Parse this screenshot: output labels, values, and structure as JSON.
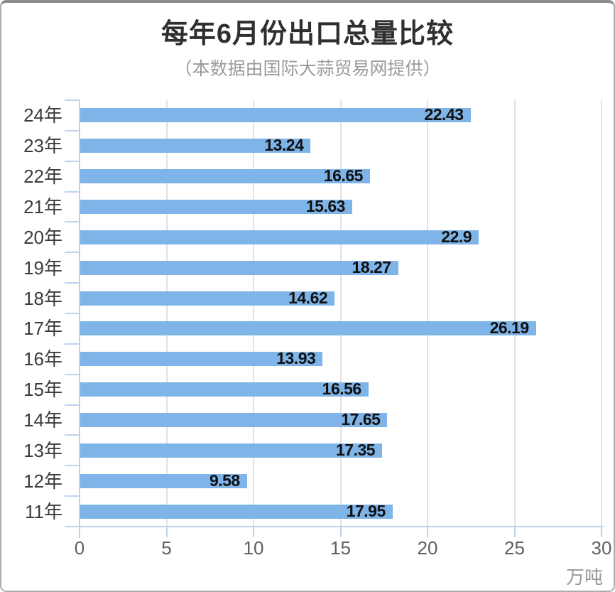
{
  "header": {
    "title": "每年6月份出口总量比较",
    "subtitle": "（本数据由国际大蒜贸易网提供）"
  },
  "chart_data": {
    "type": "bar",
    "orientation": "horizontal",
    "title": "每年6月份出口总量比较",
    "subtitle": "（本数据由国际大蒜贸易网提供）",
    "categories": [
      "24年",
      "23年",
      "22年",
      "21年",
      "20年",
      "19年",
      "18年",
      "17年",
      "16年",
      "15年",
      "14年",
      "13年",
      "12年",
      "11年"
    ],
    "values": [
      22.43,
      13.24,
      16.65,
      15.63,
      22.9,
      18.27,
      14.62,
      26.19,
      13.93,
      16.56,
      17.65,
      17.35,
      9.58,
      17.95
    ],
    "value_labels": [
      "22.43",
      "13.24",
      "16.65",
      "15.63",
      "22.9",
      "18.27",
      "14.62",
      "26.19",
      "13.93",
      "16.56",
      "17.65",
      "17.35",
      "9.58",
      "17.95"
    ],
    "x_ticks": [
      0,
      5,
      10,
      15,
      20,
      25,
      30
    ],
    "xlim": [
      0,
      30
    ],
    "xlabel": "万吨",
    "ylabel": "",
    "grid": true,
    "legend": "none",
    "colors": {
      "bar": "#7EB4E8",
      "axis": "#BFD2EA",
      "gridline": "#E2E2E2",
      "value_text": "#101010",
      "category_text": "#3c3c3c",
      "tick_text": "#606060",
      "unit_text": "#999999"
    }
  }
}
